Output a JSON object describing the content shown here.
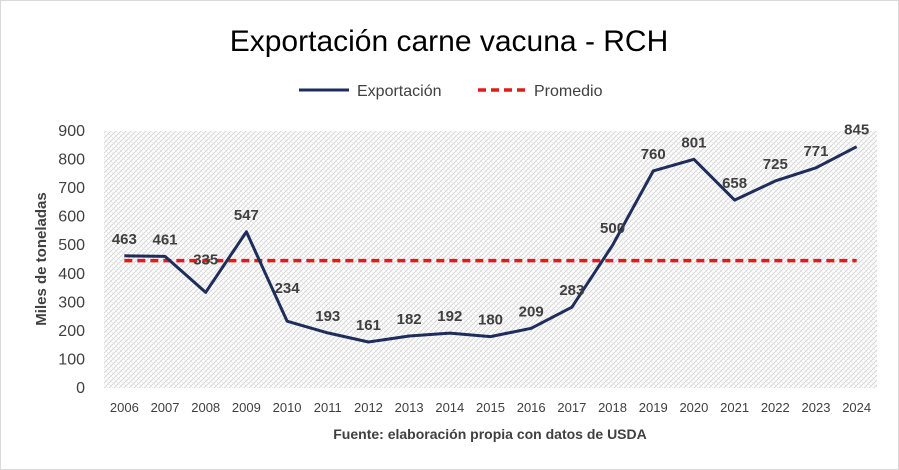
{
  "chart_data": {
    "type": "line",
    "title": "Exportación carne vacuna - RCH",
    "xlabel": "Fuente: elaboración propia con datos de USDA",
    "ylabel": "Miles de toneladas",
    "ylim": [
      0,
      900
    ],
    "yticks": [
      0,
      100,
      200,
      300,
      400,
      500,
      600,
      700,
      800,
      900
    ],
    "categories": [
      "2006",
      "2007",
      "2008",
      "2009",
      "2010",
      "2011",
      "2012",
      "2013",
      "2014",
      "2015",
      "2016",
      "2017",
      "2018",
      "2019",
      "2020",
      "2021",
      "2022",
      "2023",
      "2024"
    ],
    "series": [
      {
        "name": "Exportación",
        "color": "#1f2d5c",
        "values": [
          463,
          461,
          335,
          547,
          234,
          193,
          161,
          182,
          192,
          180,
          209,
          283,
          500,
          760,
          801,
          658,
          725,
          771,
          845
        ],
        "labels": [
          "463",
          "461",
          "335",
          "547",
          "234",
          "193",
          "161",
          "182",
          "192",
          "180",
          "209",
          "283",
          "500",
          "760",
          "801",
          "658",
          "725",
          "771",
          "845"
        ]
      },
      {
        "name": "Promedio",
        "color": "#e31a1c",
        "style": "dashed",
        "values": [
          446,
          446,
          446,
          446,
          446,
          446,
          446,
          446,
          446,
          446,
          446,
          446,
          446,
          446,
          446,
          446,
          446,
          446,
          446
        ]
      }
    ],
    "legend_position": "top-center",
    "grid": false,
    "plot_background": "hatched"
  }
}
